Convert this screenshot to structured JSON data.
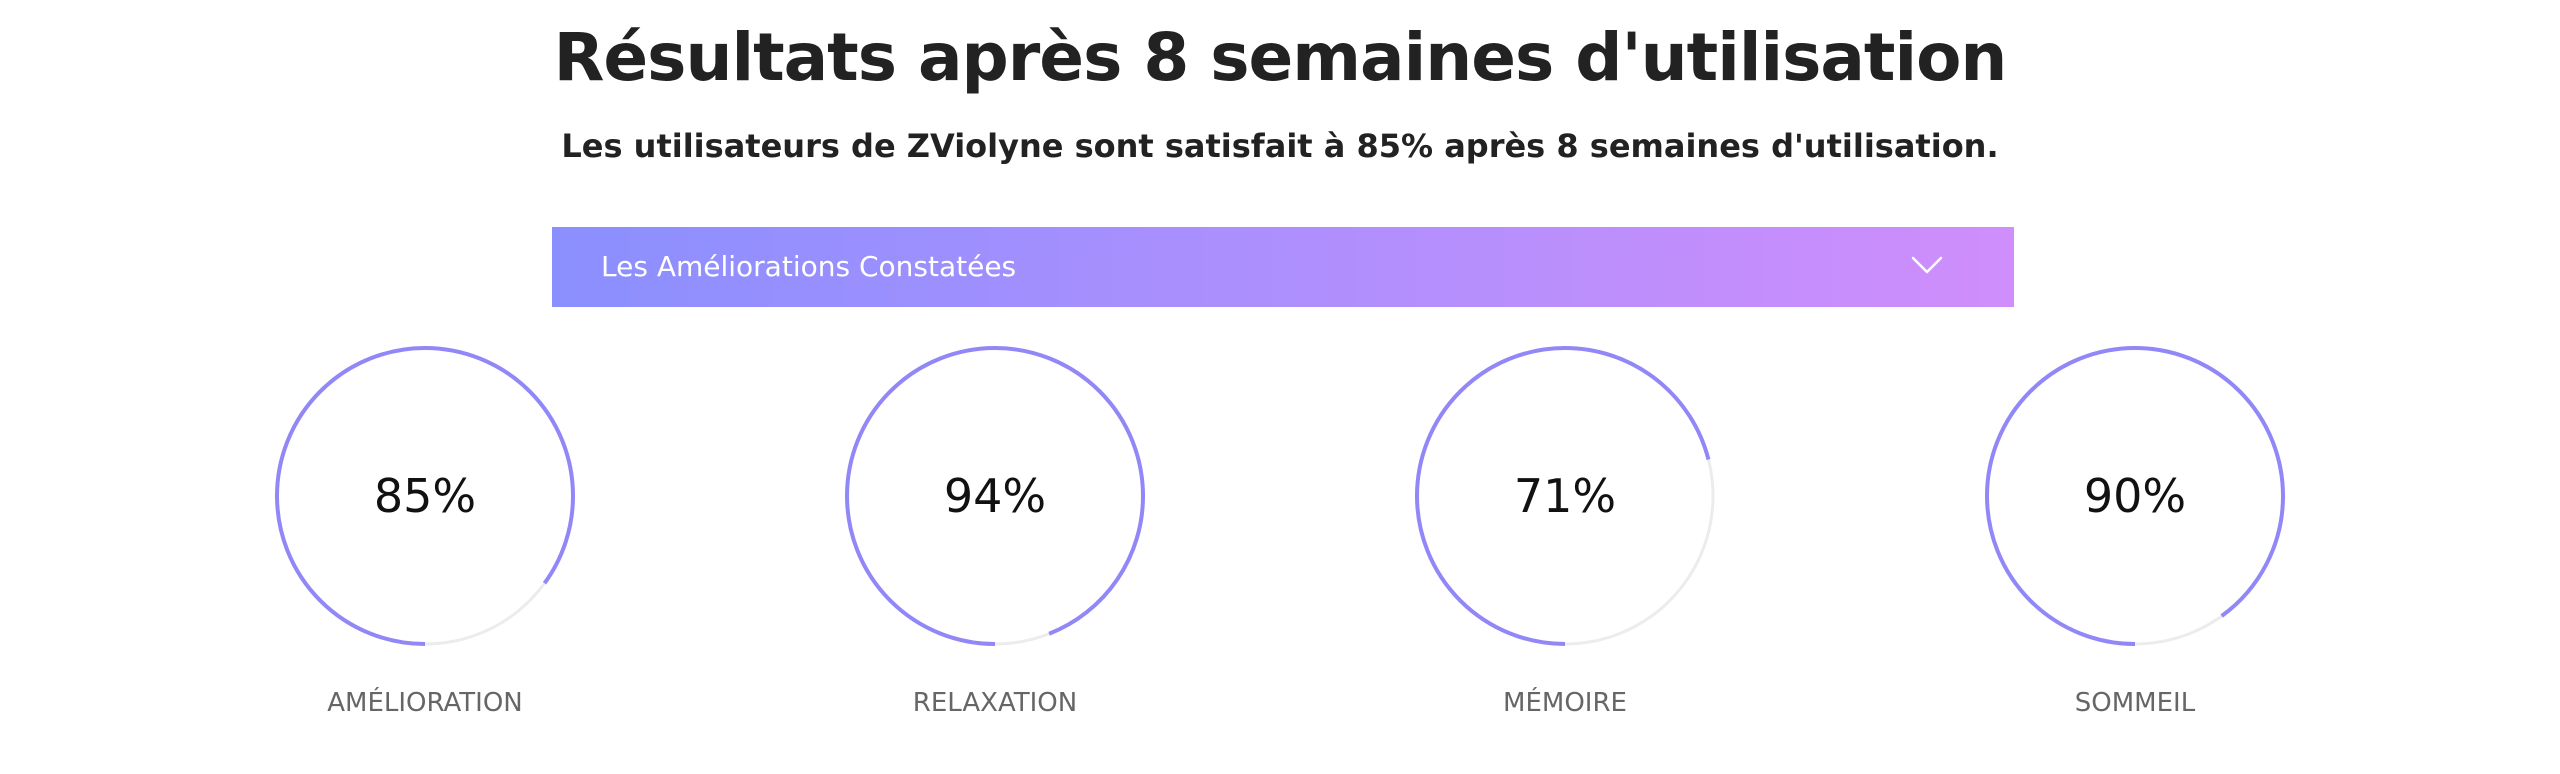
{
  "header": {
    "title": "Résultats après 8 semaines d'utilisation",
    "subtitle": "Les utilisateurs de ZViolyne sont satisfait à 85% après 8 semaines d'utilisation."
  },
  "accordion": {
    "label": "Les Améliorations Constatées",
    "icon": "chevron-down-icon",
    "gradient_start": "#8b8ffe",
    "gradient_end": "#cf8efb"
  },
  "stats": [
    {
      "value": "85%",
      "percent": 85,
      "label": "AMÉLIORATION"
    },
    {
      "value": "94%",
      "percent": 94,
      "label": "RELAXATION"
    },
    {
      "value": "71%",
      "percent": 71,
      "label": "MÉMOIRE"
    },
    {
      "value": "90%",
      "percent": 90,
      "label": "SOMMEIL"
    }
  ],
  "colors": {
    "ring_fill": "#9187f7",
    "ring_track": "#ececec",
    "text_dark": "#222222",
    "label_gray": "#666666"
  }
}
